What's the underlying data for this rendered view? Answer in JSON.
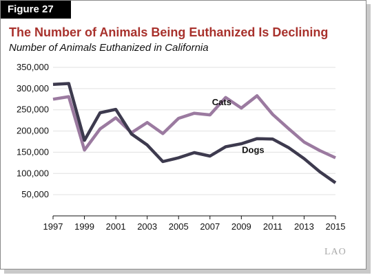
{
  "figure_label": "Figure 27",
  "logo_text": "LAO",
  "chart_data": {
    "type": "line",
    "title": "The Number of Animals Being Euthanized Is Declining",
    "subtitle": "Number of Animals Euthanized in California",
    "xlabel": "",
    "ylabel": "",
    "x": [
      1997,
      1998,
      1999,
      2000,
      2001,
      2002,
      2003,
      2004,
      2005,
      2006,
      2007,
      2008,
      2009,
      2010,
      2011,
      2012,
      2013,
      2014,
      2015
    ],
    "xlim": [
      1997,
      2015
    ],
    "ylim": [
      0,
      350000
    ],
    "x_ticks": [
      "1997",
      "1999",
      "2001",
      "2003",
      "2005",
      "2007",
      "2009",
      "2011",
      "2013",
      "2015"
    ],
    "y_ticks": [
      "50,000",
      "100,000",
      "150,000",
      "200,000",
      "250,000",
      "300,000",
      "350,000"
    ],
    "grid": true,
    "series": [
      {
        "name": "Cats",
        "color": "#9b7aa0",
        "values": [
          275000,
          281000,
          155000,
          205000,
          231000,
          196000,
          220000,
          194000,
          230000,
          242000,
          238000,
          279000,
          254000,
          283000,
          239000,
          206000,
          174000,
          154000,
          137000
        ]
      },
      {
        "name": "Dogs",
        "color": "#3d3a4e",
        "values": [
          310000,
          312000,
          178000,
          243000,
          251000,
          193000,
          167000,
          128000,
          137000,
          149000,
          141000,
          163000,
          170000,
          182000,
          181000,
          161000,
          135000,
          104000,
          78000
        ]
      }
    ]
  }
}
